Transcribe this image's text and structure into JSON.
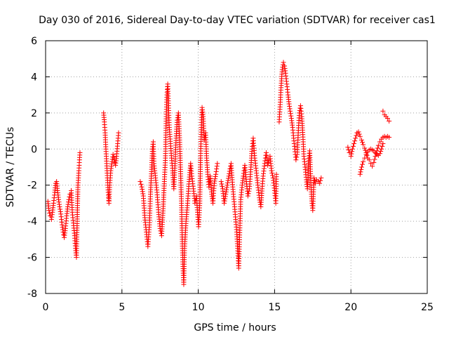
{
  "chart_data": {
    "type": "scatter",
    "title": "Day 030 of 2016, Sidereal Day-to-day VTEC variation (SDTVAR) for receiver cas1",
    "xlabel": "GPS time / hours",
    "ylabel": "SDTVAR / TECUs",
    "xlim": [
      0,
      25
    ],
    "ylim": [
      -8,
      6
    ],
    "xticks": [
      0,
      5,
      10,
      15,
      20,
      25
    ],
    "yticks": [
      -8,
      -6,
      -4,
      -2,
      0,
      2,
      4,
      6
    ],
    "grid": true,
    "marker": "+",
    "color": "#ff0000",
    "series": [
      {
        "name": "SDTVAR",
        "segments": [
          [
            [
              0.15,
              -2.9
            ],
            [
              0.22,
              -3.4
            ],
            [
              0.3,
              -3.7
            ],
            [
              0.38,
              -3.9
            ],
            [
              0.45,
              -3.5
            ],
            [
              0.52,
              -3.0
            ],
            [
              0.6,
              -2.4
            ],
            [
              0.66,
              -1.9
            ],
            [
              0.72,
              -1.8
            ],
            [
              0.78,
              -2.3
            ],
            [
              0.85,
              -2.8
            ],
            [
              0.92,
              -3.2
            ],
            [
              1.0,
              -3.6
            ],
            [
              1.08,
              -4.2
            ],
            [
              1.15,
              -4.6
            ],
            [
              1.22,
              -4.9
            ],
            [
              1.3,
              -4.4
            ],
            [
              1.38,
              -3.7
            ],
            [
              1.45,
              -3.2
            ],
            [
              1.52,
              -2.8
            ],
            [
              1.6,
              -2.5
            ],
            [
              1.68,
              -2.3
            ],
            [
              1.75,
              -3.5
            ],
            [
              1.82,
              -4.1
            ],
            [
              1.9,
              -4.8
            ],
            [
              1.96,
              -5.5
            ],
            [
              2.02,
              -6.0
            ],
            [
              2.08,
              -3.5
            ],
            [
              2.12,
              -2.0
            ],
            [
              2.18,
              -1.2
            ],
            [
              2.22,
              -0.6
            ],
            [
              2.25,
              -0.2
            ]
          ],
          [
            [
              3.8,
              2.0
            ],
            [
              3.85,
              1.5
            ],
            [
              3.9,
              0.9
            ],
            [
              3.95,
              0.0
            ],
            [
              4.0,
              -0.8
            ],
            [
              4.05,
              -1.6
            ],
            [
              4.1,
              -2.4
            ],
            [
              4.15,
              -3.0
            ],
            [
              4.2,
              -2.0
            ],
            [
              4.27,
              -1.2
            ],
            [
              4.35,
              -0.7
            ],
            [
              4.42,
              -0.3
            ],
            [
              4.5,
              -0.6
            ],
            [
              4.58,
              -0.9
            ],
            [
              4.65,
              -0.4
            ],
            [
              4.72,
              0.3
            ],
            [
              4.78,
              0.9
            ]
          ],
          [
            [
              6.2,
              -1.8
            ],
            [
              6.3,
              -2.1
            ],
            [
              6.4,
              -2.6
            ],
            [
              6.5,
              -3.8
            ],
            [
              6.6,
              -4.6
            ],
            [
              6.7,
              -5.4
            ],
            [
              6.8,
              -4.2
            ],
            [
              6.87,
              -2.5
            ],
            [
              6.95,
              -1.0
            ],
            [
              7.0,
              0.0
            ],
            [
              7.05,
              0.4
            ],
            [
              7.1,
              -0.8
            ],
            [
              7.2,
              -1.6
            ],
            [
              7.3,
              -2.4
            ],
            [
              7.4,
              -3.5
            ],
            [
              7.5,
              -4.4
            ],
            [
              7.6,
              -4.8
            ],
            [
              7.7,
              -3.3
            ],
            [
              7.78,
              -1.8
            ],
            [
              7.85,
              -0.5
            ],
            [
              7.9,
              1.8
            ],
            [
              7.95,
              3.0
            ],
            [
              8.0,
              3.6
            ],
            [
              8.05,
              2.4
            ],
            [
              8.1,
              1.2
            ],
            [
              8.18,
              0.3
            ],
            [
              8.25,
              -0.5
            ],
            [
              8.32,
              -1.2
            ],
            [
              8.4,
              -2.2
            ],
            [
              8.48,
              -0.8
            ],
            [
              8.55,
              0.6
            ],
            [
              8.62,
              1.6
            ],
            [
              8.7,
              2.0
            ],
            [
              8.78,
              0.5
            ],
            [
              8.85,
              -1.5
            ],
            [
              8.9,
              -3.0
            ],
            [
              8.95,
              -5.0
            ],
            [
              9.0,
              -6.5
            ],
            [
              9.05,
              -7.5
            ],
            [
              9.1,
              -5.5
            ],
            [
              9.2,
              -4.0
            ],
            [
              9.3,
              -3.0
            ],
            [
              9.4,
              -1.8
            ],
            [
              9.5,
              -0.8
            ],
            [
              9.58,
              -1.5
            ],
            [
              9.68,
              -2.2
            ],
            [
              9.78,
              -3.0
            ],
            [
              9.88,
              -2.6
            ],
            [
              9.95,
              -3.5
            ],
            [
              10.02,
              -4.3
            ],
            [
              10.1,
              -3.0
            ],
            [
              10.15,
              -0.5
            ],
            [
              10.2,
              1.2
            ],
            [
              10.25,
              2.3
            ],
            [
              10.32,
              1.8
            ],
            [
              10.4,
              0.5
            ],
            [
              10.48,
              0.9
            ],
            [
              10.55,
              -0.5
            ],
            [
              10.62,
              -1.4
            ],
            [
              10.7,
              -2.1
            ],
            [
              10.78,
              -1.5
            ],
            [
              10.88,
              -2.5
            ],
            [
              10.96,
              -3.0
            ],
            [
              11.05,
              -1.9
            ],
            [
              11.15,
              -1.4
            ],
            [
              11.25,
              -0.8
            ]
          ],
          [
            [
              11.5,
              -1.8
            ],
            [
              11.6,
              -2.2
            ],
            [
              11.7,
              -3.0
            ],
            [
              11.8,
              -2.5
            ],
            [
              11.9,
              -2.0
            ],
            [
              12.0,
              -1.5
            ],
            [
              12.08,
              -1.1
            ],
            [
              12.15,
              -0.8
            ],
            [
              12.22,
              -1.7
            ],
            [
              12.3,
              -2.5
            ],
            [
              12.38,
              -3.2
            ],
            [
              12.45,
              -3.9
            ],
            [
              12.52,
              -4.6
            ],
            [
              12.58,
              -5.5
            ],
            [
              12.65,
              -6.6
            ],
            [
              12.72,
              -4.5
            ],
            [
              12.78,
              -2.8
            ],
            [
              12.88,
              -2.0
            ],
            [
              12.95,
              -1.5
            ],
            [
              13.05,
              -0.9
            ],
            [
              13.15,
              -1.8
            ],
            [
              13.25,
              -2.6
            ],
            [
              13.35,
              -2.2
            ],
            [
              13.45,
              -1.0
            ],
            [
              13.52,
              0.0
            ],
            [
              13.6,
              0.6
            ],
            [
              13.7,
              -0.5
            ],
            [
              13.8,
              -1.2
            ],
            [
              13.9,
              -2.0
            ],
            [
              14.0,
              -2.7
            ],
            [
              14.1,
              -3.2
            ],
            [
              14.18,
              -2.2
            ],
            [
              14.25,
              -1.5
            ],
            [
              14.35,
              -0.8
            ],
            [
              14.45,
              -0.2
            ],
            [
              14.55,
              -0.9
            ],
            [
              14.62,
              -0.6
            ],
            [
              14.7,
              -0.4
            ],
            [
              14.8,
              -1.2
            ],
            [
              14.9,
              -1.6
            ],
            [
              15.0,
              -2.3
            ],
            [
              15.08,
              -3.0
            ],
            [
              15.12,
              -1.4
            ]
          ],
          [
            [
              15.3,
              1.5
            ],
            [
              15.35,
              2.2
            ],
            [
              15.42,
              3.4
            ],
            [
              15.5,
              4.4
            ],
            [
              15.58,
              4.8
            ],
            [
              15.65,
              4.6
            ],
            [
              15.72,
              4.2
            ],
            [
              15.8,
              3.6
            ],
            [
              15.88,
              3.0
            ],
            [
              15.95,
              2.5
            ],
            [
              16.02,
              2.1
            ],
            [
              16.1,
              1.7
            ],
            [
              16.18,
              1.2
            ],
            [
              16.25,
              0.6
            ],
            [
              16.32,
              0.0
            ],
            [
              16.4,
              -0.6
            ],
            [
              16.48,
              -0.3
            ],
            [
              16.55,
              0.9
            ],
            [
              16.62,
              2.0
            ],
            [
              16.7,
              2.4
            ],
            [
              16.78,
              1.8
            ],
            [
              16.85,
              0.8
            ],
            [
              16.92,
              -0.4
            ],
            [
              17.0,
              -1.0
            ],
            [
              17.08,
              -1.7
            ],
            [
              17.15,
              -2.2
            ],
            [
              17.22,
              -0.8
            ],
            [
              17.3,
              -0.1
            ],
            [
              17.38,
              -2.0
            ],
            [
              17.45,
              -3.0
            ],
            [
              17.5,
              -3.4
            ],
            [
              17.58,
              -1.6
            ],
            [
              17.66,
              -1.9
            ],
            [
              17.75,
              -1.7
            ],
            [
              17.85,
              -1.8
            ],
            [
              17.95,
              -1.9
            ],
            [
              18.05,
              -1.6
            ]
          ],
          [
            [
              19.8,
              0.1
            ],
            [
              19.9,
              -0.2
            ],
            [
              20.0,
              -0.4
            ],
            [
              20.1,
              0.0
            ],
            [
              20.2,
              0.3
            ],
            [
              20.3,
              0.6
            ],
            [
              20.4,
              0.9
            ],
            [
              20.5,
              0.95
            ],
            [
              20.6,
              0.7
            ],
            [
              20.7,
              0.5
            ],
            [
              20.8,
              0.25
            ],
            [
              20.9,
              0.05
            ],
            [
              21.0,
              -0.2
            ],
            [
              21.1,
              -0.5
            ],
            [
              21.2,
              -0.6
            ],
            [
              21.3,
              -0.8
            ],
            [
              21.4,
              -0.95
            ],
            [
              21.5,
              -0.75
            ],
            [
              21.6,
              -0.4
            ],
            [
              21.7,
              -0.1
            ],
            [
              21.8,
              0.2
            ],
            [
              21.9,
              0.4
            ],
            [
              22.0,
              0.55
            ],
            [
              22.1,
              0.65
            ],
            [
              22.2,
              0.7
            ],
            [
              22.3,
              0.65
            ],
            [
              22.4,
              0.7
            ],
            [
              22.5,
              0.65
            ]
          ],
          [
            [
              20.6,
              -1.4
            ],
            [
              20.7,
              -1.0
            ],
            [
              20.8,
              -0.7
            ],
            [
              20.9,
              -0.5
            ],
            [
              21.0,
              -0.3
            ],
            [
              21.1,
              -0.15
            ],
            [
              21.2,
              -0.05
            ],
            [
              21.3,
              0.0
            ],
            [
              21.4,
              -0.05
            ],
            [
              21.5,
              -0.1
            ],
            [
              21.6,
              -0.2
            ],
            [
              21.7,
              -0.3
            ],
            [
              21.8,
              -0.35
            ],
            [
              21.9,
              -0.25
            ],
            [
              22.0,
              0.0
            ],
            [
              22.1,
              0.3
            ]
          ],
          [
            [
              22.1,
              2.1
            ],
            [
              22.2,
              1.9
            ],
            [
              22.3,
              1.8
            ],
            [
              22.4,
              1.7
            ],
            [
              22.5,
              1.55
            ]
          ]
        ]
      }
    ]
  }
}
